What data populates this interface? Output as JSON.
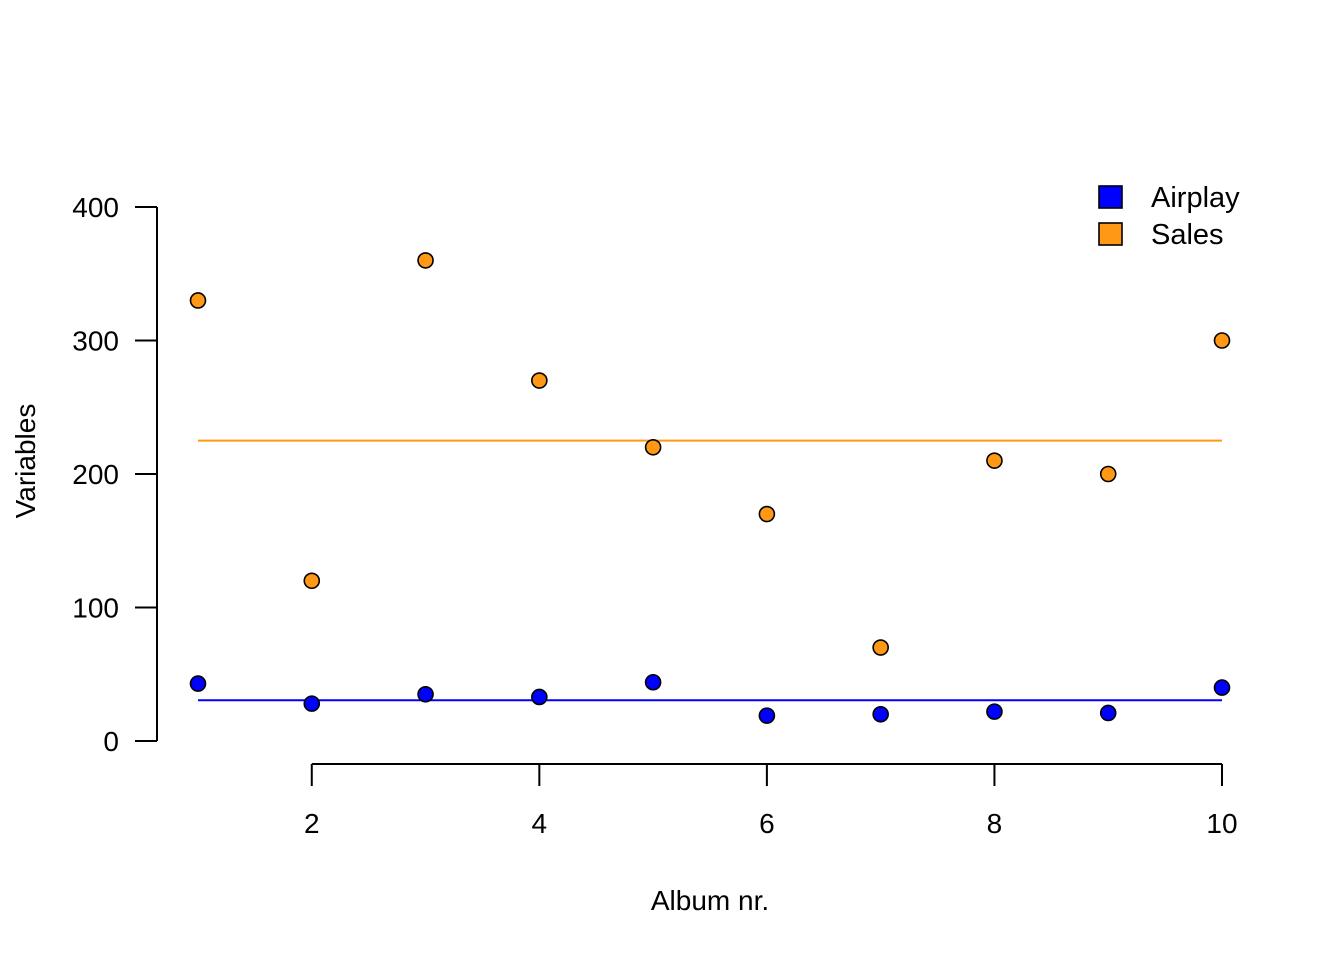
{
  "chart_data": {
    "type": "scatter",
    "title": "",
    "xlabel": "Album nr.",
    "ylabel": "Variables",
    "x": [
      1,
      2,
      3,
      4,
      5,
      6,
      7,
      8,
      9,
      10
    ],
    "xlim": [
      1,
      10
    ],
    "ylim": [
      0,
      400
    ],
    "x_ticks": [
      2,
      4,
      6,
      8,
      10
    ],
    "y_ticks": [
      0,
      100,
      200,
      300,
      400
    ],
    "grid": false,
    "legend_position": "top-right",
    "series": [
      {
        "name": "Airplay",
        "color": "#0000ff",
        "values": [
          43,
          28,
          35,
          33,
          44,
          19,
          20,
          22,
          21,
          40
        ],
        "mean_line": 30.5
      },
      {
        "name": "Sales",
        "color": "#ff9915",
        "values": [
          330,
          120,
          360,
          270,
          220,
          170,
          70,
          210,
          200,
          300
        ],
        "mean_line": 225
      }
    ]
  }
}
